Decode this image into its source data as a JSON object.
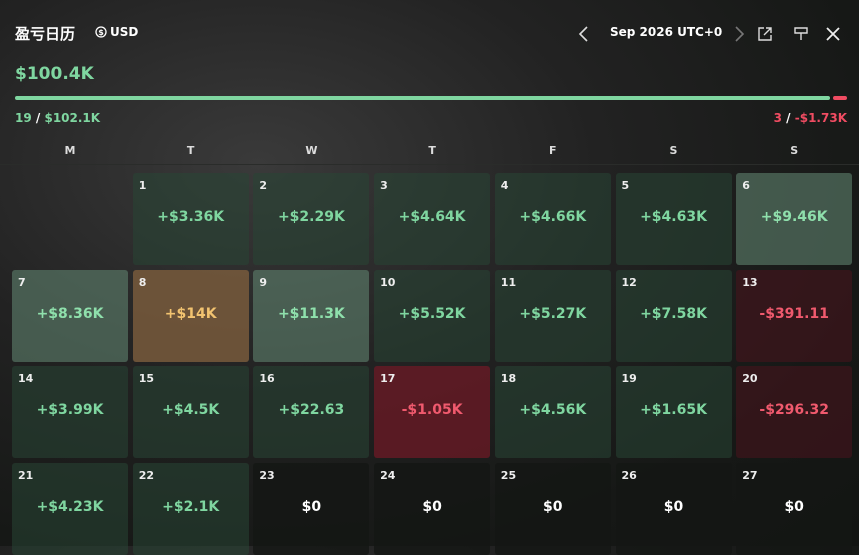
{
  "header": {
    "title": "盈亏日历",
    "currency": "USD",
    "period": "Sep 2026 UTC+0"
  },
  "summary": {
    "total": "$100.4K",
    "win_days": "19",
    "separator": "/",
    "win_total": "$102.1K",
    "loss_days": "3",
    "loss_total": "-$1.73K"
  },
  "weekdays": [
    "M",
    "T",
    "W",
    "T",
    "F",
    "S",
    "S"
  ],
  "weeks": [
    [
      null,
      {
        "day": "1",
        "pnl": "+$3.36K",
        "tone": "profit"
      },
      {
        "day": "2",
        "pnl": "+$2.29K",
        "tone": "profit"
      },
      {
        "day": "3",
        "pnl": "+$4.64K",
        "tone": "profit"
      },
      {
        "day": "4",
        "pnl": "+$4.66K",
        "tone": "profit"
      },
      {
        "day": "5",
        "pnl": "+$4.63K",
        "tone": "profit"
      },
      {
        "day": "6",
        "pnl": "+$9.46K",
        "tone": "strong-profit"
      }
    ],
    [
      {
        "day": "7",
        "pnl": "+$8.36K",
        "tone": "strong-profit"
      },
      {
        "day": "8",
        "pnl": "+$14K",
        "tone": "best"
      },
      {
        "day": "9",
        "pnl": "+$11.3K",
        "tone": "strong-profit"
      },
      {
        "day": "10",
        "pnl": "+$5.52K",
        "tone": "profit"
      },
      {
        "day": "11",
        "pnl": "+$5.27K",
        "tone": "profit"
      },
      {
        "day": "12",
        "pnl": "+$7.58K",
        "tone": "profit"
      },
      {
        "day": "13",
        "pnl": "-$391.11",
        "tone": "loss"
      }
    ],
    [
      {
        "day": "14",
        "pnl": "+$3.99K",
        "tone": "profit"
      },
      {
        "day": "15",
        "pnl": "+$4.5K",
        "tone": "profit"
      },
      {
        "day": "16",
        "pnl": "+$22.63",
        "tone": "profit"
      },
      {
        "day": "17",
        "pnl": "-$1.05K",
        "tone": "strong-loss"
      },
      {
        "day": "18",
        "pnl": "+$4.56K",
        "tone": "profit"
      },
      {
        "day": "19",
        "pnl": "+$1.65K",
        "tone": "profit"
      },
      {
        "day": "20",
        "pnl": "-$296.32",
        "tone": "loss"
      }
    ],
    [
      {
        "day": "21",
        "pnl": "+$4.23K",
        "tone": "profit"
      },
      {
        "day": "22",
        "pnl": "+$2.1K",
        "tone": "profit"
      },
      {
        "day": "23",
        "pnl": "$0",
        "tone": "flat"
      },
      {
        "day": "24",
        "pnl": "$0",
        "tone": "flat"
      },
      {
        "day": "25",
        "pnl": "$0",
        "tone": "flat"
      },
      {
        "day": "26",
        "pnl": "$0",
        "tone": "flat"
      },
      {
        "day": "27",
        "pnl": "$0",
        "tone": "flat"
      }
    ]
  ]
}
